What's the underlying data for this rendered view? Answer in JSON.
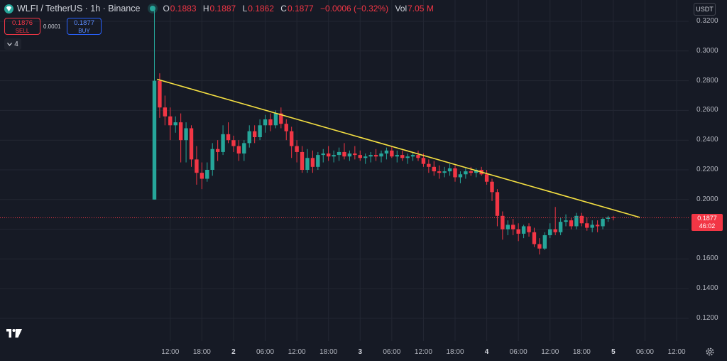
{
  "header": {
    "symbol": "WLFI / TetherUS · 1h · Binance",
    "ohlc": [
      {
        "key": "O",
        "value": "0.1883"
      },
      {
        "key": "H",
        "value": "0.1887"
      },
      {
        "key": "L",
        "value": "0.1862"
      },
      {
        "key": "C",
        "value": "0.1877"
      }
    ],
    "change": "−0.0006 (−0.32%)",
    "volume_key": "Vol",
    "volume": "7.05 M"
  },
  "trade": {
    "sell_price": "0.1876",
    "sell_label": "SELL",
    "buy_price": "0.1877",
    "buy_label": "BUY",
    "spread": "0.0001"
  },
  "indicators": {
    "count": "4"
  },
  "currency": "USDT",
  "price_axis": {
    "ticks": [
      "0.3200",
      "0.3000",
      "0.2800",
      "0.2600",
      "0.2400",
      "0.2200",
      "0.2000",
      "0.1800",
      "0.1600",
      "0.1400",
      "0.1200"
    ],
    "current_price": "0.1877",
    "countdown": "46:02"
  },
  "time_axis": {
    "labels": [
      {
        "t": "12:00",
        "day": false
      },
      {
        "t": "18:00",
        "day": false
      },
      {
        "t": "2",
        "day": true
      },
      {
        "t": "06:00",
        "day": false
      },
      {
        "t": "12:00",
        "day": false
      },
      {
        "t": "18:00",
        "day": false
      },
      {
        "t": "3",
        "day": true
      },
      {
        "t": "06:00",
        "day": false
      },
      {
        "t": "12:00",
        "day": false
      },
      {
        "t": "18:00",
        "day": false
      },
      {
        "t": "4",
        "day": true
      },
      {
        "t": "06:00",
        "day": false
      },
      {
        "t": "12:00",
        "day": false
      },
      {
        "t": "18:00",
        "day": false
      },
      {
        "t": "5",
        "day": true
      },
      {
        "t": "06:00",
        "day": false
      },
      {
        "t": "12:00",
        "day": false
      }
    ]
  },
  "colors": {
    "up": "#26a69a",
    "down": "#f23645",
    "trendline": "#f5e042",
    "background": "#161a25",
    "grid": "#232733"
  },
  "chart_data": {
    "type": "candlestick",
    "timeframe": "1h",
    "ylim": [
      0.11,
      0.325
    ],
    "first_candle_hour": 9,
    "candles": [
      [
        0.2,
        0.33,
        0.2,
        0.28
      ],
      [
        0.28,
        0.285,
        0.255,
        0.262
      ],
      [
        0.262,
        0.27,
        0.25,
        0.256
      ],
      [
        0.256,
        0.262,
        0.24,
        0.25
      ],
      [
        0.25,
        0.256,
        0.245,
        0.252
      ],
      [
        0.252,
        0.258,
        0.225,
        0.24
      ],
      [
        0.24,
        0.252,
        0.225,
        0.248
      ],
      [
        0.248,
        0.25,
        0.222,
        0.227
      ],
      [
        0.227,
        0.236,
        0.21,
        0.218
      ],
      [
        0.218,
        0.225,
        0.207,
        0.214
      ],
      [
        0.214,
        0.225,
        0.212,
        0.22
      ],
      [
        0.22,
        0.238,
        0.216,
        0.234
      ],
      [
        0.234,
        0.24,
        0.226,
        0.232
      ],
      [
        0.232,
        0.25,
        0.23,
        0.244
      ],
      [
        0.244,
        0.252,
        0.238,
        0.24
      ],
      [
        0.24,
        0.243,
        0.232,
        0.236
      ],
      [
        0.236,
        0.24,
        0.226,
        0.231
      ],
      [
        0.231,
        0.24,
        0.226,
        0.238
      ],
      [
        0.238,
        0.25,
        0.235,
        0.246
      ],
      [
        0.246,
        0.25,
        0.238,
        0.242
      ],
      [
        0.242,
        0.254,
        0.24,
        0.25
      ],
      [
        0.25,
        0.257,
        0.245,
        0.254
      ],
      [
        0.254,
        0.258,
        0.246,
        0.25
      ],
      [
        0.25,
        0.26,
        0.248,
        0.258
      ],
      [
        0.258,
        0.262,
        0.248,
        0.251
      ],
      [
        0.251,
        0.254,
        0.24,
        0.246
      ],
      [
        0.246,
        0.249,
        0.228,
        0.236
      ],
      [
        0.236,
        0.24,
        0.225,
        0.232
      ],
      [
        0.232,
        0.236,
        0.218,
        0.22
      ],
      [
        0.22,
        0.234,
        0.218,
        0.228
      ],
      [
        0.228,
        0.233,
        0.218,
        0.222
      ],
      [
        0.222,
        0.232,
        0.22,
        0.23
      ],
      [
        0.23,
        0.234,
        0.225,
        0.231
      ],
      [
        0.231,
        0.236,
        0.226,
        0.229
      ],
      [
        0.229,
        0.233,
        0.225,
        0.23
      ],
      [
        0.23,
        0.235,
        0.226,
        0.232
      ],
      [
        0.232,
        0.238,
        0.227,
        0.229
      ],
      [
        0.229,
        0.233,
        0.226,
        0.231
      ],
      [
        0.231,
        0.236,
        0.227,
        0.23
      ],
      [
        0.23,
        0.233,
        0.226,
        0.228
      ],
      [
        0.228,
        0.231,
        0.224,
        0.229
      ],
      [
        0.229,
        0.232,
        0.225,
        0.23
      ],
      [
        0.23,
        0.234,
        0.226,
        0.229
      ],
      [
        0.229,
        0.233,
        0.225,
        0.231
      ],
      [
        0.231,
        0.235,
        0.227,
        0.233
      ],
      [
        0.233,
        0.236,
        0.228,
        0.229
      ],
      [
        0.229,
        0.233,
        0.225,
        0.23
      ],
      [
        0.23,
        0.233,
        0.226,
        0.228
      ],
      [
        0.228,
        0.231,
        0.224,
        0.229
      ],
      [
        0.229,
        0.232,
        0.226,
        0.23
      ],
      [
        0.23,
        0.233,
        0.226,
        0.228
      ],
      [
        0.228,
        0.231,
        0.222,
        0.224
      ],
      [
        0.224,
        0.227,
        0.218,
        0.222
      ],
      [
        0.222,
        0.226,
        0.216,
        0.219
      ],
      [
        0.219,
        0.223,
        0.214,
        0.218
      ],
      [
        0.218,
        0.222,
        0.215,
        0.219
      ],
      [
        0.219,
        0.224,
        0.216,
        0.221
      ],
      [
        0.221,
        0.223,
        0.212,
        0.215
      ],
      [
        0.215,
        0.219,
        0.211,
        0.217
      ],
      [
        0.217,
        0.221,
        0.214,
        0.219
      ],
      [
        0.219,
        0.222,
        0.216,
        0.218
      ],
      [
        0.218,
        0.221,
        0.215,
        0.22
      ],
      [
        0.22,
        0.222,
        0.216,
        0.217
      ],
      [
        0.217,
        0.22,
        0.21,
        0.212
      ],
      [
        0.212,
        0.214,
        0.199,
        0.205
      ],
      [
        0.205,
        0.207,
        0.182,
        0.189
      ],
      [
        0.189,
        0.192,
        0.173,
        0.18
      ],
      [
        0.18,
        0.186,
        0.176,
        0.183
      ],
      [
        0.183,
        0.187,
        0.176,
        0.18
      ],
      [
        0.18,
        0.184,
        0.172,
        0.177
      ],
      [
        0.177,
        0.183,
        0.174,
        0.182
      ],
      [
        0.182,
        0.184,
        0.175,
        0.178
      ],
      [
        0.178,
        0.181,
        0.168,
        0.17
      ],
      [
        0.17,
        0.174,
        0.163,
        0.167
      ],
      [
        0.167,
        0.178,
        0.166,
        0.176
      ],
      [
        0.176,
        0.184,
        0.174,
        0.18
      ],
      [
        0.18,
        0.195,
        0.176,
        0.178
      ],
      [
        0.178,
        0.188,
        0.176,
        0.185
      ],
      [
        0.185,
        0.19,
        0.182,
        0.186
      ],
      [
        0.186,
        0.188,
        0.18,
        0.182
      ],
      [
        0.182,
        0.191,
        0.18,
        0.189
      ],
      [
        0.189,
        0.191,
        0.182,
        0.184
      ],
      [
        0.184,
        0.188,
        0.179,
        0.181
      ],
      [
        0.181,
        0.186,
        0.178,
        0.183
      ],
      [
        0.183,
        0.186,
        0.178,
        0.182
      ],
      [
        0.182,
        0.188,
        0.18,
        0.187
      ],
      [
        0.187,
        0.189,
        0.185,
        0.188
      ],
      [
        0.188,
        0.189,
        0.186,
        0.1877
      ]
    ],
    "trendline": {
      "start": {
        "candle": 0.5,
        "price": 0.281
      },
      "end": {
        "candle": 92,
        "price": 0.188
      }
    },
    "current_price": 0.1877
  }
}
